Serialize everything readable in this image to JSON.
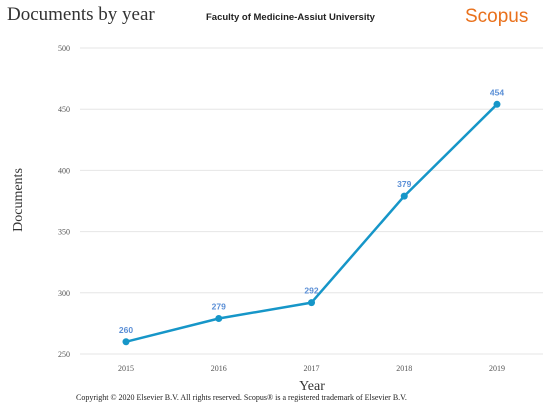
{
  "header": {
    "title": "Documents by year",
    "subtitle": "Faculty of Medicine-Assiut University",
    "brand": "Scopus",
    "brand_color": "#e9711c"
  },
  "chart_data": {
    "type": "line",
    "title": "Documents by year",
    "xlabel": "Year",
    "ylabel": "Documents",
    "categories": [
      "2015",
      "2016",
      "2017",
      "2018",
      "2019"
    ],
    "series": [
      {
        "values": [
          260,
          279,
          292,
          379,
          454
        ],
        "color": "#1696c8"
      }
    ],
    "data_labels": [
      "260",
      "279",
      "292",
      "379",
      "454"
    ],
    "yticks": [
      "250",
      "300",
      "350",
      "400",
      "450",
      "500"
    ],
    "ylim": [
      250,
      500
    ],
    "grid": true,
    "legend": "none"
  },
  "footer": {
    "copyright": "Copyright © 2020 Elsevier B.V. All rights reserved. Scopus® is a registered trademark of Elsevier B.V."
  }
}
